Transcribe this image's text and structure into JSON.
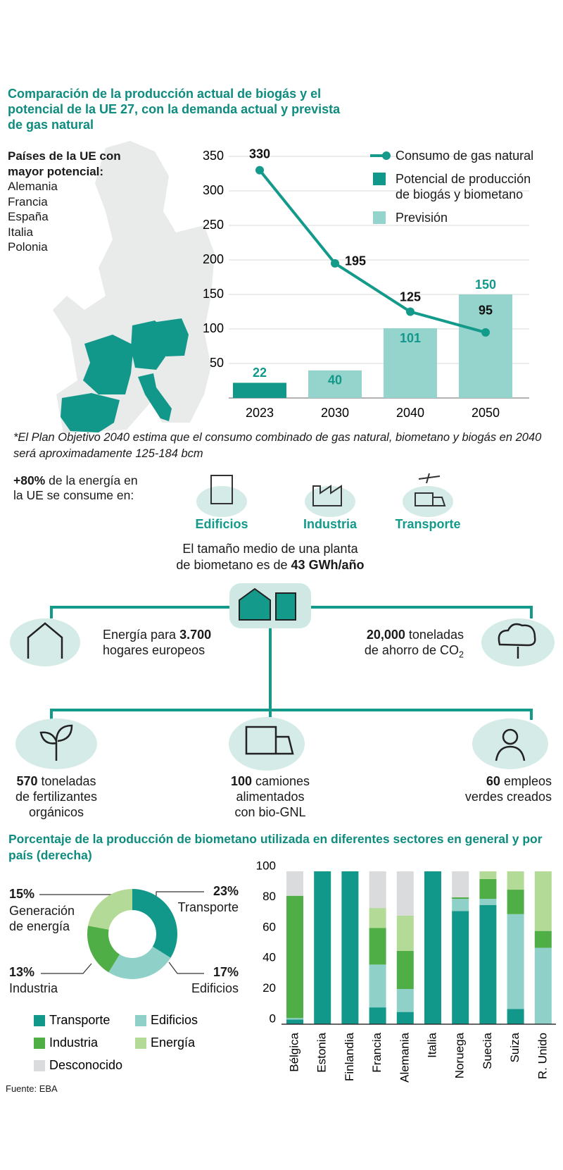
{
  "chart_data": [
    {
      "type": "bar",
      "title": "Comparación de la producción actual de biogás y el potencial de la UE 27, con la demanda actual y prevista de gas natural",
      "categories": [
        "2023",
        "2030",
        "2040",
        "2050"
      ],
      "series": [
        {
          "name": "Potencial de producción de biogás y biometano",
          "color": "#12988a",
          "values": [
            22,
            null,
            null,
            null
          ]
        },
        {
          "name": "Previsión",
          "color": "#95d4cc",
          "values": [
            null,
            40,
            101,
            150
          ]
        },
        {
          "name": "Consumo de gas natural",
          "type": "line",
          "color": "#139a8a",
          "values": [
            330,
            195,
            125,
            95
          ]
        }
      ],
      "ylim": [
        0,
        350
      ],
      "yticks": [
        50,
        100,
        150,
        200,
        250,
        300,
        350
      ],
      "grid": true
    },
    {
      "type": "pie",
      "donut": true,
      "categories": [
        "Transporte",
        "Edificios",
        "Industria",
        "Generación de energía"
      ],
      "values": [
        23,
        17,
        13,
        15
      ],
      "value_labels": [
        "23%",
        "17%",
        "13%",
        "15%"
      ],
      "colors": [
        "#12988a",
        "#8fd0c8",
        "#4fae45",
        "#b4da98"
      ]
    },
    {
      "type": "stacked_bar",
      "categories": [
        "Bélgica",
        "Estonia",
        "Finlandia",
        "Francia",
        "Alemania",
        "Italia",
        "Noruega",
        "Suecia",
        "Suiza",
        "R. Unido"
      ],
      "series": [
        {
          "name": "Transporte",
          "color": "#12988a",
          "values": [
            3,
            100,
            100,
            11,
            8,
            100,
            74,
            78,
            10,
            0
          ]
        },
        {
          "name": "Edificios",
          "color": "#8fd0c8",
          "values": [
            1,
            0,
            0,
            28,
            15,
            0,
            8,
            4,
            62,
            50
          ]
        },
        {
          "name": "Industria",
          "color": "#4fae45",
          "values": [
            80,
            0,
            0,
            24,
            25,
            0,
            1,
            13,
            16,
            11
          ]
        },
        {
          "name": "Energía",
          "color": "#b4da98",
          "values": [
            0,
            0,
            0,
            13,
            23,
            0,
            0,
            5,
            12,
            39
          ]
        },
        {
          "name": "Desconocido",
          "color": "#d9dbdc",
          "values": [
            16,
            0,
            0,
            24,
            29,
            0,
            17,
            0,
            0,
            0
          ]
        }
      ],
      "ylim": [
        0,
        100
      ],
      "yticks": [
        0,
        20,
        40,
        60,
        80,
        100
      ],
      "grid": false
    }
  ],
  "map": {
    "heading": [
      "Países de la UE con",
      "mayor potencial:"
    ],
    "countries": [
      "Alemania",
      "Francia",
      "España",
      "Italia",
      "Polonia"
    ]
  },
  "footnote": "*El Plan Objetivo 2040 estima que el consumo combinado de gas natural, biometano y biogás en 2040 será aproximadamente 125-184 bcm",
  "energy": {
    "intro": [
      [
        {
          "strong": "+80%"
        },
        " de la energía en"
      ],
      [
        "la UE se consume en:"
      ]
    ],
    "sectors": [
      "Edificios",
      "Industria",
      "Transporte"
    ]
  },
  "plant": [
    [
      "El tamaño medio de una planta"
    ],
    [
      "de biometano es de ",
      {
        "strong": "43 GWh/año"
      }
    ]
  ],
  "benefits": [
    [
      [
        "Energía para ",
        {
          "strong": "3.700"
        }
      ],
      [
        "hogares europeos"
      ]
    ],
    [
      [
        {
          "strong": "20,000"
        },
        " toneladas"
      ],
      [
        "de ahorro de CO",
        {
          "sub": "2"
        }
      ]
    ],
    [
      [
        {
          "strong": "570"
        },
        " toneladas"
      ],
      [
        "de fertilizantes"
      ],
      [
        "orgánicos"
      ]
    ],
    [
      [
        {
          "strong": "100"
        },
        " camiones"
      ],
      [
        "alimentados"
      ],
      [
        "con bio-GNL"
      ]
    ],
    [
      [
        {
          "strong": "60"
        },
        " empleos"
      ],
      [
        "verdes creados"
      ]
    ]
  ],
  "section_title": "Porcentaje de la producción de biometano utilizada en diferentes sectores en general y por país (derecha)",
  "source": "Fuente: EBA"
}
